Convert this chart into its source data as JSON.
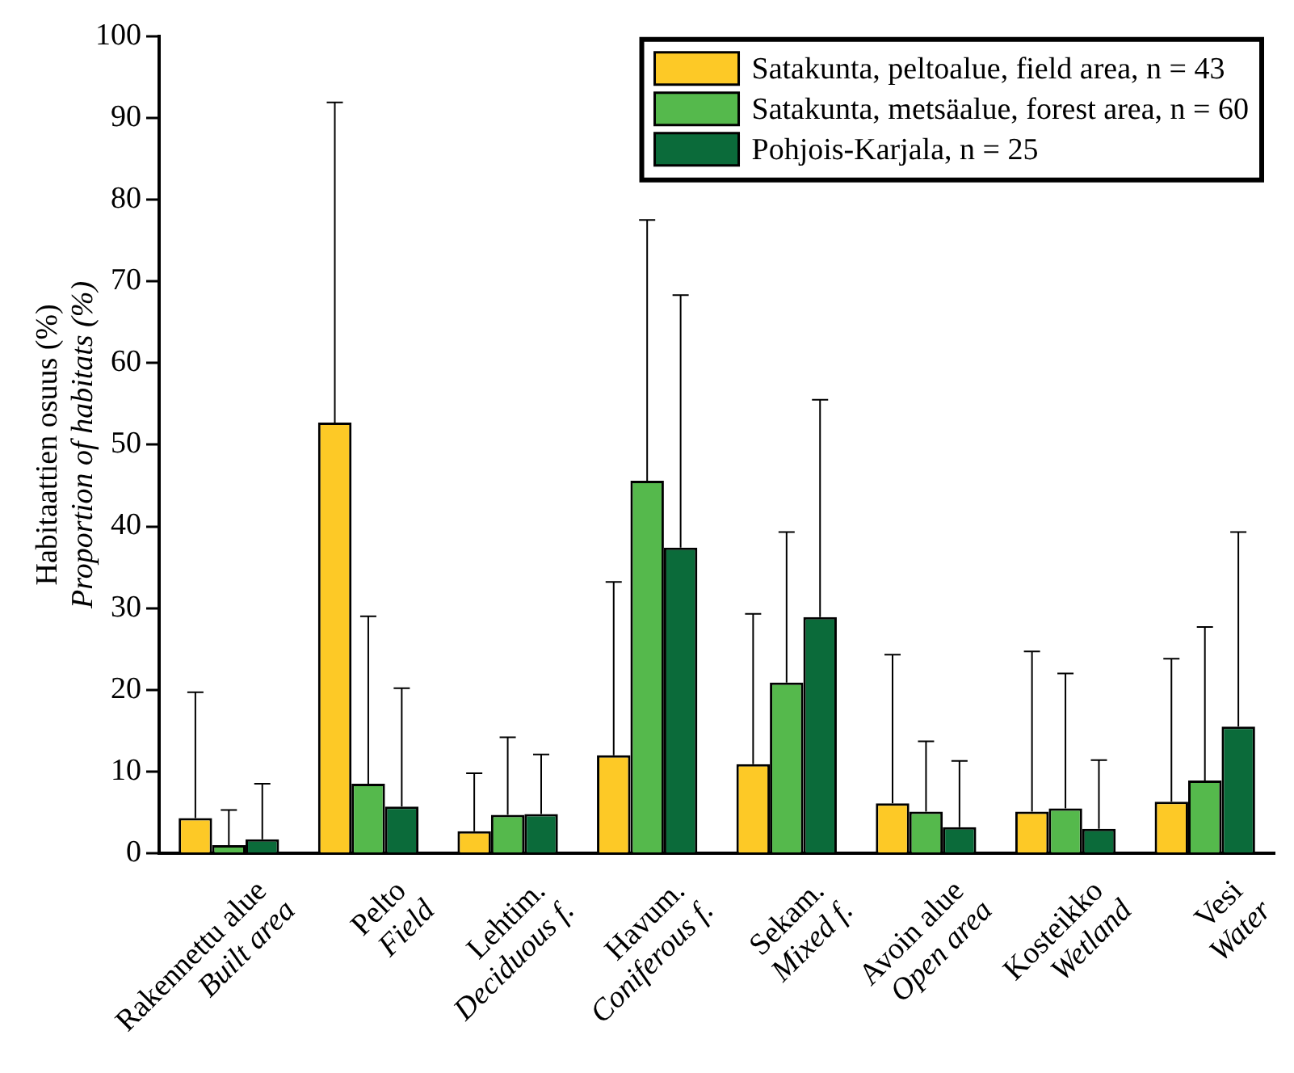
{
  "chart_data": {
    "type": "bar",
    "ylabel": "Habitaattien osuus (%)\nProportion of habitats (%)",
    "categories": [
      "Rakennettu alue\nBuilt area",
      "Pelto\nField",
      "Lehtim.\nDeciduous f.",
      "Havum.\nConiferous f.",
      "Sekam.\nMixed f.",
      "Avoin alue\nOpen area",
      "Kosteikko\nWetland",
      "Vesi\nWater"
    ],
    "series": [
      {
        "name": "Satakunta, peltoalue, field area, n = 43",
        "color": "#fdc926",
        "values": [
          4.3,
          52.7,
          2.7,
          12.0,
          10.9,
          6.1,
          5.1,
          6.3
        ],
        "errors": [
          [
            4.3,
            19.7
          ],
          [
            52.7,
            91.9
          ],
          [
            2.7,
            9.8
          ],
          [
            12.0,
            33.2
          ],
          [
            10.9,
            29.3
          ],
          [
            6.1,
            24.3
          ],
          [
            5.1,
            24.7
          ],
          [
            6.3,
            23.8
          ]
        ]
      },
      {
        "name": "Satakunta, metsäalue, forest area, n = 60",
        "color": "#55b94c",
        "values": [
          1.0,
          8.5,
          4.7,
          45.6,
          20.9,
          5.1,
          5.5,
          8.9
        ],
        "errors": [
          [
            1.0,
            5.3
          ],
          [
            8.5,
            29.0
          ],
          [
            4.7,
            14.2
          ],
          [
            45.6,
            77.5
          ],
          [
            20.9,
            39.3
          ],
          [
            5.1,
            13.7
          ],
          [
            5.5,
            22.0
          ],
          [
            8.9,
            27.7
          ]
        ]
      },
      {
        "name": "Pohjois-Karjala, n = 25",
        "color": "#0b6b3a",
        "values": [
          1.7,
          5.7,
          4.8,
          37.4,
          28.9,
          3.2,
          3.0,
          15.5
        ],
        "errors": [
          [
            1.7,
            8.5
          ],
          [
            5.7,
            20.2
          ],
          [
            4.8,
            12.1
          ],
          [
            37.4,
            68.3
          ],
          [
            28.9,
            55.5
          ],
          [
            3.2,
            11.3
          ],
          [
            3.0,
            11.4
          ],
          [
            15.5,
            39.3
          ]
        ]
      }
    ],
    "ylim": [
      0,
      100
    ],
    "yticks": [
      0,
      10,
      20,
      30,
      40,
      50,
      60,
      70,
      80,
      90,
      100
    ],
    "grid": false,
    "legend": "top right"
  }
}
